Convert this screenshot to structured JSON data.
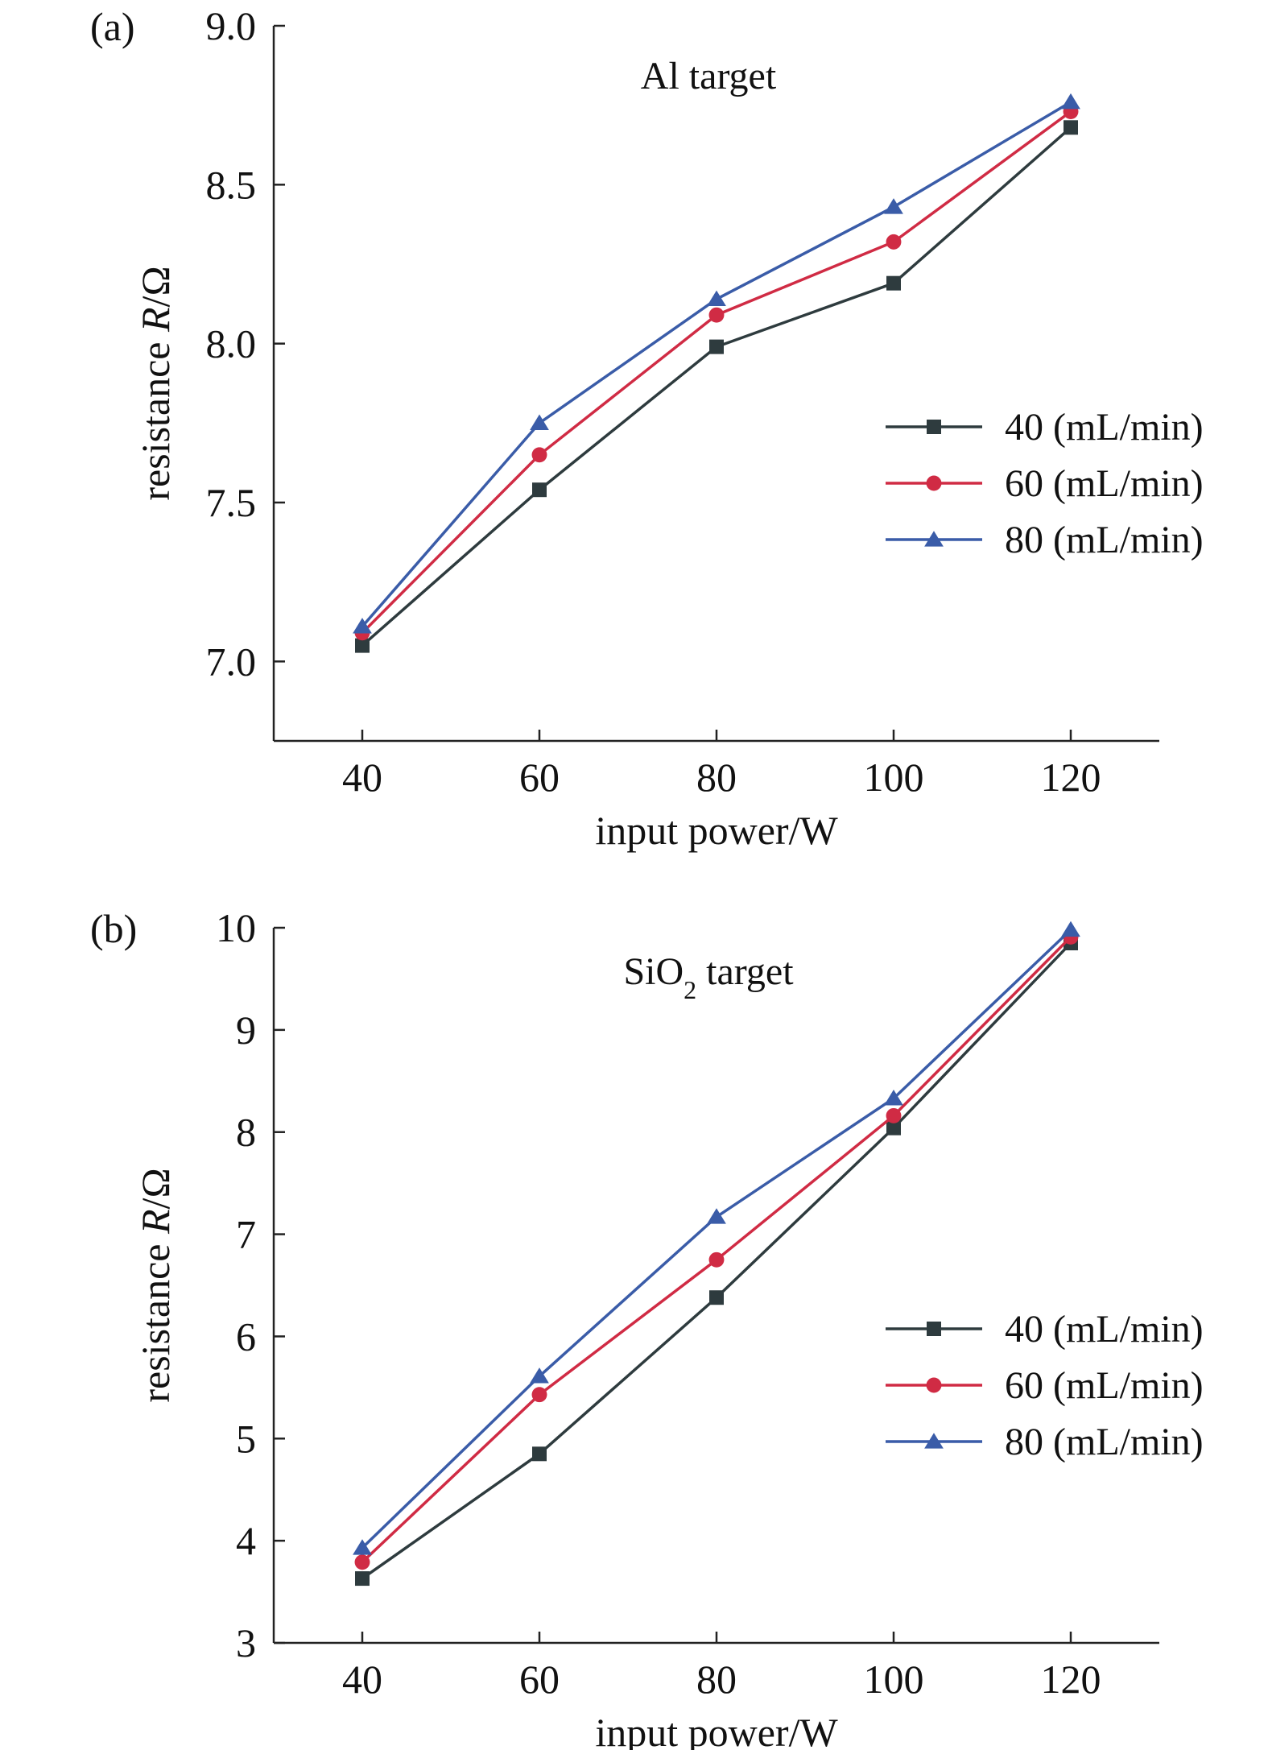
{
  "chart_data": [
    {
      "type": "line",
      "panel_label": "(a)",
      "annotation": "Al target",
      "annotation_sub": "",
      "annotation_suffix": "",
      "xlabel": "input power/W",
      "ylabel_prefix": "resistance ",
      "ylabel_italic": "R",
      "ylabel_suffix": "/Ω",
      "x": [
        40,
        60,
        80,
        100,
        120
      ],
      "xticks": [
        "40",
        "60",
        "80",
        "100",
        "120"
      ],
      "xlim": [
        30,
        130
      ],
      "yticks": [
        "7.0",
        "7.5",
        "8.0",
        "8.5",
        "9.0"
      ],
      "ylim": [
        6.75,
        9.0
      ],
      "legend_position": "right",
      "series": [
        {
          "name": "40 (mL/min)",
          "values": [
            7.05,
            7.54,
            7.99,
            8.19,
            8.68
          ],
          "color": "#2e3b3e",
          "marker": "square"
        },
        {
          "name": "60 (mL/min)",
          "values": [
            7.09,
            7.65,
            8.09,
            8.32,
            8.73
          ],
          "color": "#d02b44",
          "marker": "circle"
        },
        {
          "name": "80 (mL/min)",
          "values": [
            7.11,
            7.75,
            8.14,
            8.43,
            8.76
          ],
          "color": "#3a5ca8",
          "marker": "triangle"
        }
      ]
    },
    {
      "type": "line",
      "panel_label": "(b)",
      "annotation": "SiO",
      "annotation_sub": "2",
      "annotation_suffix": " target",
      "xlabel": "input power/W",
      "ylabel_prefix": "resistance ",
      "ylabel_italic": "R",
      "ylabel_suffix": "/Ω",
      "x": [
        40,
        60,
        80,
        100,
        120
      ],
      "xticks": [
        "40",
        "60",
        "80",
        "100",
        "120"
      ],
      "xlim": [
        30,
        130
      ],
      "yticks": [
        "3",
        "4",
        "5",
        "6",
        "7",
        "8",
        "9",
        "10"
      ],
      "ylim": [
        3,
        10
      ],
      "legend_position": "right",
      "series": [
        {
          "name": "40 (mL/min)",
          "values": [
            3.63,
            4.85,
            6.38,
            8.04,
            9.85
          ],
          "color": "#2e3b3e",
          "marker": "square"
        },
        {
          "name": "60 (mL/min)",
          "values": [
            3.79,
            5.43,
            6.75,
            8.16,
            9.91
          ],
          "color": "#d02b44",
          "marker": "circle"
        },
        {
          "name": "80 (mL/min)",
          "values": [
            3.93,
            5.61,
            7.17,
            8.33,
            9.98
          ],
          "color": "#3a5ca8",
          "marker": "triangle"
        }
      ]
    }
  ]
}
